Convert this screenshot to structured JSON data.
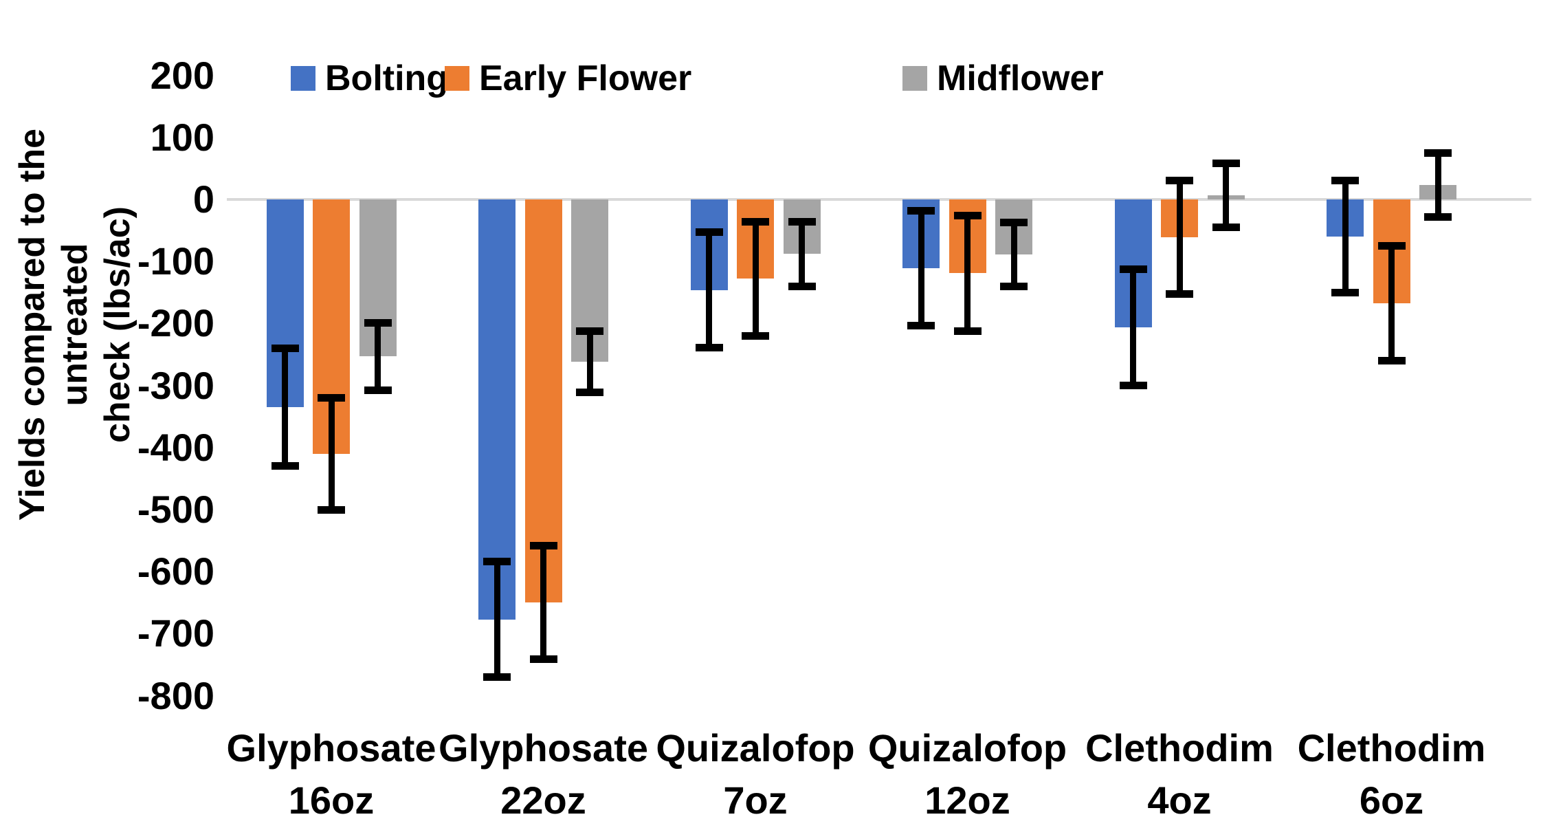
{
  "chart_data": {
    "type": "bar",
    "title": "",
    "ylabel": "Yields compared to the untreated check (lbs/ac)",
    "ylabel_lines": [
      "Yields compared to the untreated",
      "check (lbs/ac)"
    ],
    "xlabel": "",
    "ylim": [
      -800,
      200
    ],
    "ytick_step": 100,
    "ytick_labels": [
      "200",
      "100",
      "0",
      "-100",
      "-200",
      "-300",
      "-400",
      "-500",
      "-600",
      "-700",
      "-800"
    ],
    "grid": false,
    "legend_position": "top",
    "categories": [
      {
        "line1": "Glyphosate",
        "line2": "16oz"
      },
      {
        "line1": "Glyphosate",
        "line2": "22oz"
      },
      {
        "line1": "Quizalofop",
        "line2": "7oz"
      },
      {
        "line1": "Quizalofop",
        "line2": "12oz"
      },
      {
        "line1": "Clethodim",
        "line2": "4oz"
      },
      {
        "line1": "Clethodim",
        "line2": "6oz"
      }
    ],
    "series": [
      {
        "name": "Bolting",
        "color": "#4472C4",
        "values": [
          -335,
          -677,
          -146,
          -111,
          -206,
          -60
        ],
        "errors": [
          95,
          94,
          94,
          93,
          94,
          91
        ]
      },
      {
        "name": "Early Flower",
        "color": "#ED7D31",
        "values": [
          -410,
          -650,
          -128,
          -119,
          -61,
          -167
        ],
        "errors": [
          91,
          92,
          93,
          94,
          92,
          93
        ]
      },
      {
        "name": "Midflower",
        "color": "#A5A5A5",
        "values": [
          -253,
          -262,
          -88,
          -89,
          7,
          23
        ],
        "errors": [
          55,
          50,
          53,
          52,
          52,
          52
        ]
      }
    ],
    "axis_line_color": "#D9D9D9",
    "error_bar_color": "#000000",
    "text_color": "#000000"
  }
}
